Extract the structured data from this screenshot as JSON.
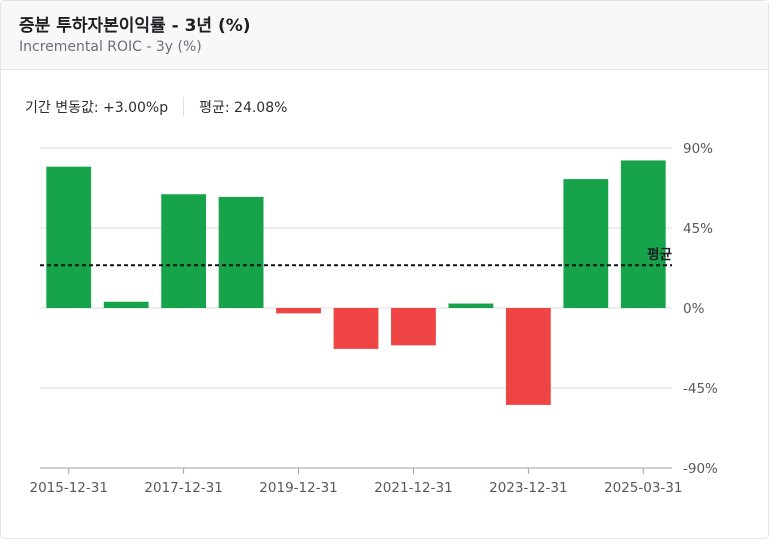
{
  "header": {
    "title": "증분 투하자본이익률 - 3년 (%)",
    "subtitle": "Incremental ROIC - 3y (%)"
  },
  "stats": {
    "change": "기간 변동값: +3.00%p",
    "average": "평균: 24.08%"
  },
  "chart_data": {
    "type": "bar",
    "ylim": [
      -90,
      90
    ],
    "yticks": [
      90,
      45,
      0,
      -45,
      -90
    ],
    "ytick_labels": [
      "90%",
      "45%",
      "0%",
      "-45%",
      "-90%"
    ],
    "x_tick_labels": [
      "2015-12-31",
      "2017-12-31",
      "2019-12-31",
      "2021-12-31",
      "2023-12-31",
      "2025-03-31"
    ],
    "x_tick_bar_index": [
      0,
      2,
      4,
      6,
      8,
      10
    ],
    "values": [
      79.5,
      3.5,
      64,
      62.5,
      -3,
      -23,
      -21,
      2.5,
      -54.5,
      72.5,
      83
    ],
    "average": {
      "value": 24.08,
      "label": "평균"
    },
    "colors": {
      "positive": "#16a34a",
      "negative": "#ef4444",
      "grid": "#d8dbdf",
      "axis": "#9aa0a6"
    },
    "grid": true
  }
}
